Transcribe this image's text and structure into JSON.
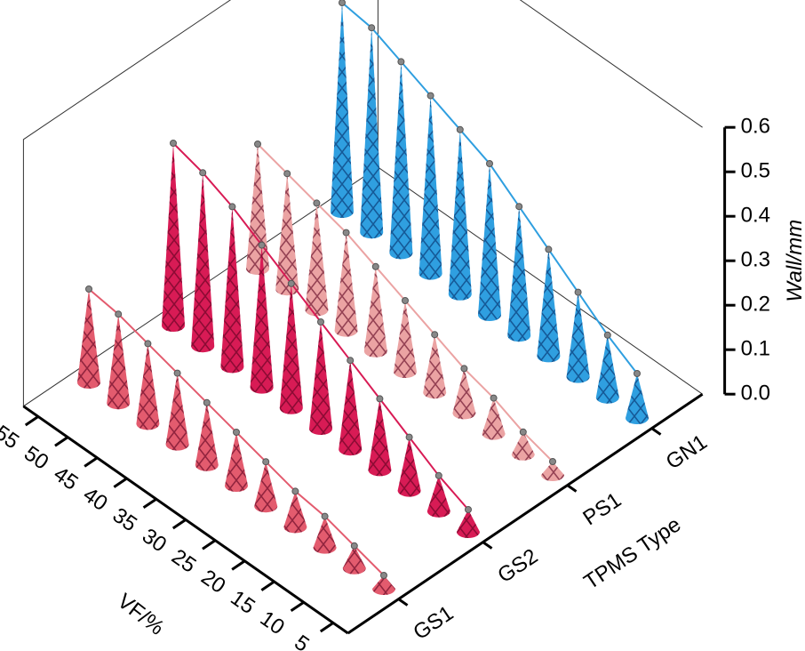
{
  "chart_data": {
    "type": "cone3d",
    "x_label": "VF/%",
    "y_label": "TPMS Type",
    "z_label": "Wall/mm",
    "x": [
      5,
      10,
      15,
      20,
      25,
      30,
      35,
      40,
      45,
      50,
      55
    ],
    "xticks": [
      5,
      10,
      15,
      20,
      25,
      30,
      35,
      40,
      45,
      50,
      55
    ],
    "xlim": [
      2.5,
      57.5
    ],
    "zlim": [
      0,
      0.6
    ],
    "zticks": [
      {
        "value": 0,
        "label": "0.0"
      },
      0.1,
      0.2,
      0.3,
      0.4,
      0.5,
      0.6
    ],
    "series": [
      {
        "name": "GS1",
        "color": "#e35b6e",
        "values": [
          0.03,
          0.05,
          0.07,
          0.08,
          0.1,
          0.12,
          0.14,
          0.16,
          0.18,
          0.2,
          0.21
        ]
      },
      {
        "name": "GS2",
        "color": "#d81b55",
        "values": [
          0.05,
          0.08,
          0.12,
          0.16,
          0.2,
          0.24,
          0.28,
          0.32,
          0.36,
          0.39,
          0.41
        ]
      },
      {
        "name": "PS1",
        "color": "#eba3a3",
        "values": [
          0.03,
          0.05,
          0.08,
          0.1,
          0.13,
          0.16,
          0.19,
          0.22,
          0.24,
          0.26,
          0.28
        ]
      },
      {
        "name": "GN1",
        "color": "#2f9fe0",
        "values": [
          0.1,
          0.14,
          0.19,
          0.24,
          0.29,
          0.34,
          0.37,
          0.4,
          0.43,
          0.46,
          0.47
        ]
      }
    ]
  }
}
